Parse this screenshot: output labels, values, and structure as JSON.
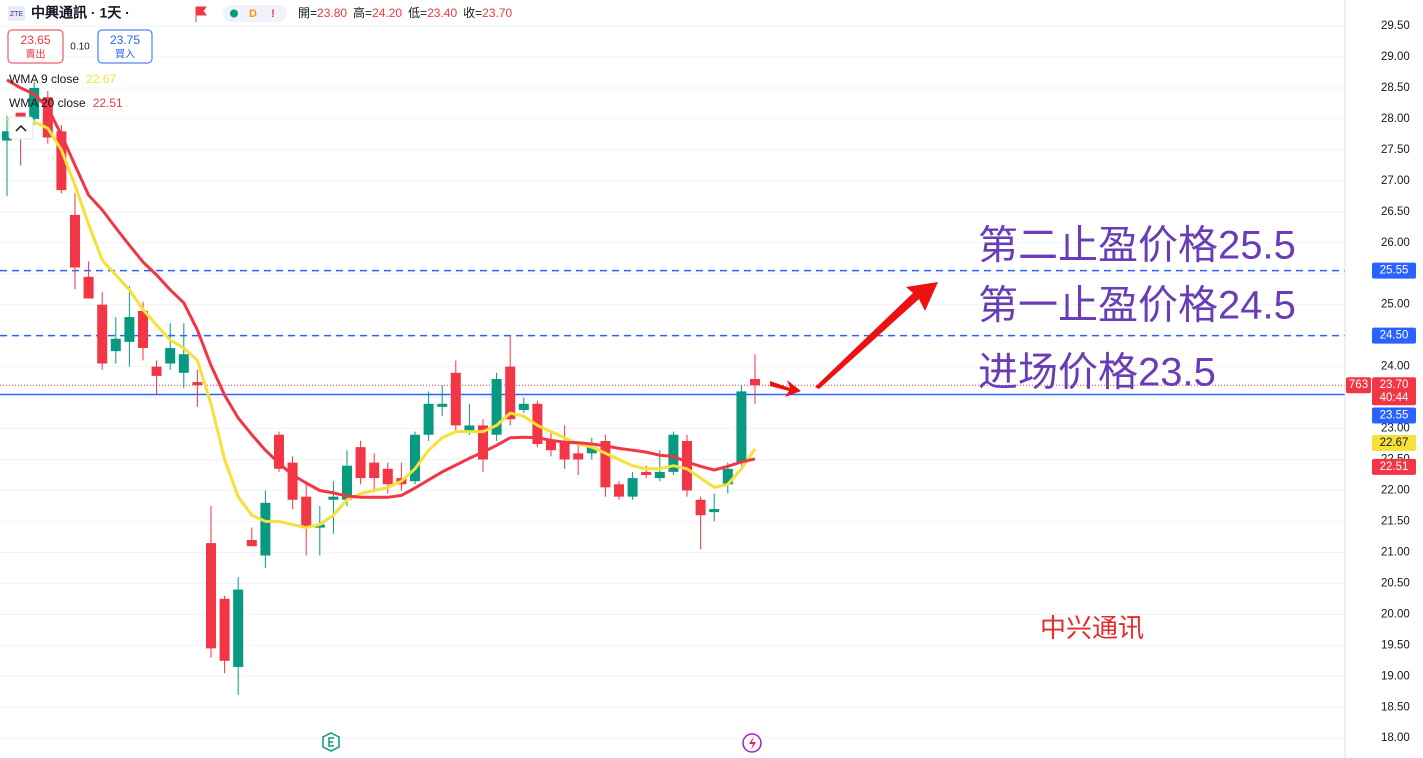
{
  "header": {
    "symbol": "中興通訊 · 1天 ·",
    "exchange_icon": "ZTE",
    "status": "D",
    "alert": "!",
    "ohlc": [
      {
        "label": "開=",
        "value": "23.80"
      },
      {
        "label": "高=",
        "value": "24.20"
      },
      {
        "label": "低=",
        "value": "23.40"
      },
      {
        "label": "收=",
        "value": "23.70"
      }
    ]
  },
  "trade": {
    "sell_price": "23.65",
    "sell": "賣出",
    "spread": "0.10",
    "buy_price": "23.75",
    "buy": "買入"
  },
  "chart_data": {
    "type": "candlestick",
    "up_color": "#089981",
    "down_color": "#f23645",
    "open": [
      27.65,
      28.1,
      28.0,
      28.35,
      27.8,
      26.45,
      25.45,
      25.0,
      24.25,
      24.4,
      24.9,
      24.0,
      24.05,
      23.9,
      23.75,
      21.15,
      20.25,
      19.15,
      21.2,
      20.95,
      22.9,
      22.45,
      21.9,
      21.4,
      21.85,
      21.85,
      22.7,
      22.45,
      22.35,
      22.2,
      22.15,
      22.9,
      23.35,
      23.9,
      22.95,
      23.05,
      22.9,
      24.0,
      23.3,
      23.4,
      22.8,
      22.8,
      22.6,
      22.6,
      22.8,
      22.1,
      21.9,
      22.3,
      22.2,
      22.3,
      22.8,
      21.85,
      21.65,
      22.1,
      22.45,
      23.8
    ],
    "high": [
      28.05,
      28.1,
      28.6,
      28.45,
      27.9,
      26.8,
      25.7,
      25.2,
      24.8,
      25.3,
      25.05,
      24.1,
      24.7,
      24.7,
      23.95,
      21.75,
      20.3,
      20.6,
      21.4,
      22.0,
      22.95,
      22.55,
      22.15,
      21.75,
      22.15,
      22.65,
      22.8,
      22.6,
      22.45,
      22.45,
      22.95,
      23.6,
      23.7,
      24.1,
      23.4,
      23.15,
      23.9,
      24.5,
      23.5,
      23.45,
      22.95,
      23.05,
      22.75,
      22.85,
      22.9,
      22.15,
      22.3,
      22.4,
      22.65,
      22.95,
      22.9,
      21.9,
      21.95,
      22.45,
      23.7,
      24.2
    ],
    "low": [
      26.75,
      27.25,
      27.9,
      27.6,
      26.8,
      25.25,
      25.1,
      23.95,
      24.05,
      24.0,
      24.1,
      23.55,
      23.95,
      23.65,
      23.35,
      19.3,
      19.05,
      18.7,
      21.1,
      20.75,
      22.3,
      21.7,
      20.95,
      20.95,
      21.3,
      21.75,
      22.1,
      22.0,
      21.95,
      22.0,
      22.1,
      22.8,
      23.2,
      22.95,
      22.9,
      22.3,
      22.8,
      23.05,
      23.25,
      22.7,
      22.55,
      22.35,
      22.25,
      22.5,
      21.9,
      21.85,
      21.85,
      22.2,
      22.15,
      22.25,
      21.9,
      21.05,
      21.5,
      21.95,
      22.4,
      23.4
    ],
    "close": [
      27.8,
      27.75,
      28.5,
      27.7,
      26.85,
      25.6,
      25.1,
      24.05,
      24.45,
      24.8,
      24.3,
      23.85,
      24.3,
      24.2,
      23.7,
      19.45,
      19.25,
      20.4,
      21.1,
      21.8,
      22.35,
      21.85,
      21.4,
      21.45,
      21.9,
      22.4,
      22.2,
      22.2,
      22.1,
      22.1,
      22.9,
      23.4,
      23.4,
      23.05,
      23.05,
      22.5,
      23.8,
      23.15,
      23.4,
      22.75,
      22.65,
      22.5,
      22.5,
      22.7,
      22.05,
      21.9,
      22.2,
      22.25,
      22.3,
      22.9,
      22.0,
      21.6,
      21.7,
      22.35,
      23.6,
      23.7
    ],
    "series": [
      {
        "name": "WMA 9 close",
        "color": "#f5e13a",
        "values": [
          28.0,
          27.98,
          27.95,
          27.85,
          27.5,
          26.93,
          26.3,
          25.72,
          25.48,
          25.24,
          24.92,
          24.67,
          24.43,
          24.3,
          24.1,
          23.4,
          22.5,
          21.9,
          21.6,
          21.5,
          21.5,
          21.45,
          21.4,
          21.45,
          21.6,
          21.85,
          21.95,
          22.0,
          22.05,
          22.15,
          22.35,
          22.65,
          22.85,
          22.95,
          22.95,
          22.95,
          23.05,
          23.25,
          23.2,
          23.05,
          22.95,
          22.85,
          22.75,
          22.7,
          22.6,
          22.5,
          22.4,
          22.35,
          22.35,
          22.4,
          22.35,
          22.2,
          22.05,
          22.1,
          22.35,
          22.67
        ]
      },
      {
        "name": "WMA 20 close",
        "color": "#f23645",
        "values": [
          28.63,
          28.5,
          28.4,
          28.18,
          27.74,
          27.25,
          26.77,
          26.53,
          26.24,
          25.96,
          25.69,
          25.48,
          25.24,
          25.03,
          24.59,
          24.02,
          23.54,
          23.17,
          22.9,
          22.65,
          22.44,
          22.25,
          22.12,
          22.0,
          21.96,
          21.91,
          21.89,
          21.89,
          21.89,
          21.92,
          22.04,
          22.17,
          22.3,
          22.41,
          22.52,
          22.62,
          22.73,
          22.85,
          22.86,
          22.85,
          22.81,
          22.78,
          22.77,
          22.75,
          22.72,
          22.68,
          22.65,
          22.62,
          22.57,
          22.55,
          22.46,
          22.39,
          22.33,
          22.39,
          22.46,
          22.51
        ]
      }
    ],
    "ylim": [
      17.68,
      29.92
    ],
    "yticks": [
      {
        "value": 18,
        "label": "18.00"
      },
      {
        "value": 18.5,
        "label": "18.50"
      },
      {
        "value": 19,
        "label": "19.00"
      },
      {
        "value": 19.5,
        "label": "19.50"
      },
      {
        "value": 20,
        "label": "20.00"
      },
      {
        "value": 20.5,
        "label": "20.50"
      },
      {
        "value": 21,
        "label": "21.00"
      },
      {
        "value": 21.5,
        "label": "21.50"
      },
      {
        "value": 22,
        "label": "22.00"
      },
      {
        "value": 22.5,
        "label": "22.50"
      },
      {
        "value": 23,
        "label": "23.00"
      },
      {
        "value": 23.5,
        "label": "23.50"
      },
      {
        "value": 24,
        "label": "24.00"
      },
      {
        "value": 24.5,
        "label": "24.50"
      },
      {
        "value": 25,
        "label": "25.00"
      },
      {
        "value": 25.5,
        "label": "25.50"
      },
      {
        "value": 26,
        "label": "26.00"
      },
      {
        "value": 26.5,
        "label": "26.50"
      },
      {
        "value": 27,
        "label": "27.00"
      },
      {
        "value": 27.5,
        "label": "27.50"
      },
      {
        "value": 28,
        "label": "28.00"
      },
      {
        "value": 28.5,
        "label": "28.50"
      },
      {
        "value": 29,
        "label": "29.00"
      },
      {
        "value": 29.5,
        "label": "29.50"
      }
    ],
    "grid": true,
    "hlines": [
      {
        "price": 25.55,
        "style": "dashed",
        "color": "#2962ff"
      },
      {
        "price": 24.5,
        "label": "24.50",
        "style": "dashed",
        "color": "#2962ff"
      },
      {
        "price": 23.55,
        "style": "solid",
        "color": "#2962ff"
      }
    ],
    "last_price": {
      "value": 23.7,
      "label": "23.70",
      "countdown": "40:44",
      "volume": "763"
    },
    "annotations": [
      "第二止盈价格25.5",
      "第一止盈价格24.5",
      "进场价格23.5"
    ],
    "annotation_color": "#6a3db8",
    "watermark": "中兴通讯"
  }
}
